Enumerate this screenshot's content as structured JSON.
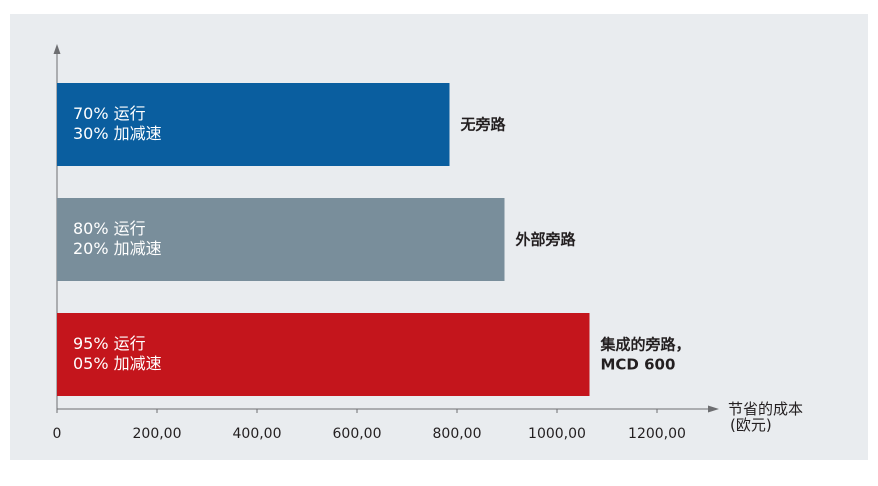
{
  "chart_data": {
    "type": "bar",
    "orientation": "horizontal",
    "xlabel": "节省的成本（欧元）",
    "xlabel_lines": [
      "节省的成本",
      "(欧元)"
    ],
    "xlim": [
      0,
      1300
    ],
    "x_ticks": [
      0,
      200,
      400,
      600,
      800,
      1000,
      1200
    ],
    "x_tick_labels": [
      "0",
      "200,00",
      "400,00",
      "600,00",
      "800,00",
      "1000,00",
      "1200,00"
    ],
    "grid": false,
    "categories": [
      "无旁路",
      "外部旁路",
      "集成的旁路，MCD 600"
    ],
    "bars": [
      {
        "value": 785,
        "color": "#0a5e9f",
        "label_lines": [
          "无旁路"
        ],
        "inner_lines": [
          "70% 运行",
          "30% 加减速"
        ]
      },
      {
        "value": 895,
        "color": "#798e9b",
        "label_lines": [
          "外部旁路"
        ],
        "inner_lines": [
          "80% 运行",
          "20% 加减速"
        ]
      },
      {
        "value": 1065,
        "color": "#c4151c",
        "label_lines": [
          "集成的旁路，",
          "MCD 600"
        ],
        "inner_lines": [
          "95% 运行",
          "05% 加减速"
        ]
      }
    ]
  }
}
